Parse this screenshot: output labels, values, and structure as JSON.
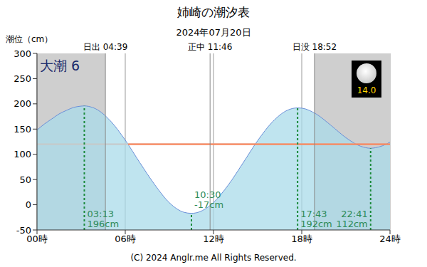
{
  "chart_data": {
    "type": "area",
    "title": "姉崎の潮汐表",
    "subtitle": "2024年07月20日",
    "y_label": "潮位（cm）",
    "x": [
      0,
      0.5,
      1,
      1.5,
      2,
      2.5,
      3,
      3.217,
      3.5,
      4,
      5,
      6,
      7,
      8,
      9,
      10,
      10.5,
      11,
      12,
      13,
      14,
      15,
      16,
      17,
      17.717,
      18,
      19,
      20,
      21,
      22,
      22.683,
      23,
      23.5,
      24
    ],
    "values": [
      148,
      160,
      170,
      180,
      187,
      193,
      195.5,
      196,
      195,
      190,
      166,
      128,
      83,
      40,
      4,
      -15,
      -17,
      -14.5,
      4.5,
      39,
      82.5,
      127,
      164,
      187,
      192,
      191.5,
      179.5,
      157,
      133,
      116,
      112,
      113,
      117,
      124
    ],
    "color": "#a9dbe9",
    "xlim": [
      0,
      24
    ],
    "xticks": [
      {
        "value": 0,
        "label": "00時"
      },
      {
        "value": 6,
        "label": "06時"
      },
      {
        "value": 12,
        "label": "12時"
      },
      {
        "value": 18,
        "label": "18時"
      },
      {
        "value": 24,
        "label": "24時"
      }
    ],
    "ylim": [
      -50,
      300
    ],
    "yticks": [
      -50,
      0,
      50,
      100,
      150,
      200,
      250,
      300
    ],
    "grid": true,
    "sun": [
      {
        "text": "日出 04:39",
        "x": 4.65
      },
      {
        "text": "正中 11:46",
        "x": 11.767
      },
      {
        "text": "日没 18:52",
        "x": 18.867
      }
    ],
    "tide_name": "大潮 6",
    "moon_age": {
      "value": 14,
      "label": "14.0"
    },
    "events": [
      {
        "time": "03:13",
        "x": 3.217,
        "value": 196,
        "label": "196cm"
      },
      {
        "time": "10:30",
        "x": 10.5,
        "value": -17,
        "label": "-17cm"
      },
      {
        "time": "17:43",
        "x": 17.717,
        "value": 192,
        "label": "192cm"
      },
      {
        "time": "22:41",
        "x": 22.683,
        "value": 112,
        "label": "112cm"
      }
    ],
    "mean_level": 120,
    "orange_line": {
      "y": 120,
      "x_from": 6.2,
      "x_to": 24
    },
    "copyright": "(C) 2024 Anglr.me All Rights Reserved."
  }
}
